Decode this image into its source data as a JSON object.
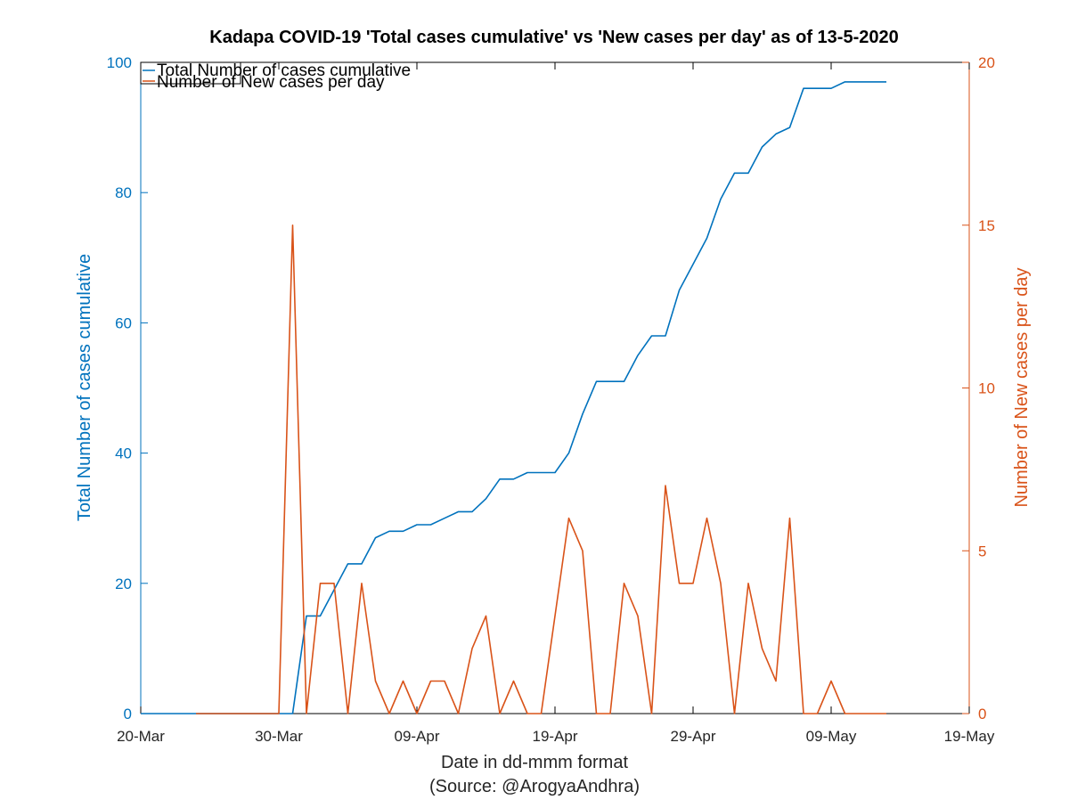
{
  "chart_data": {
    "type": "line",
    "title": "Kadapa COVID-19 'Total cases cumulative' vs 'New cases per day' as of 13-5-2020",
    "xlabel": "Date in dd-mmm format",
    "source": "(Source: @ArogyaAndhra)",
    "ylabel_left": "Total Number of cases cumulative",
    "ylabel_right": "Number of New cases per day",
    "xlim": [
      "2020-03-20",
      "2020-05-19"
    ],
    "x_ticks": [
      "20-Mar",
      "30-Mar",
      "09-Apr",
      "19-Apr",
      "29-Apr",
      "09-May",
      "19-May"
    ],
    "ylim_left": [
      0,
      100
    ],
    "y_ticks_left": [
      "0",
      "20",
      "40",
      "60",
      "80",
      "100"
    ],
    "ylim_right": [
      0,
      20
    ],
    "y_ticks_right": [
      "0",
      "5",
      "10",
      "15",
      "20"
    ],
    "grid": false,
    "legend_position": "top-left",
    "colors": {
      "cumulative": "#0072BD",
      "new": "#D95319",
      "axes": "#000000"
    },
    "series": [
      {
        "name": "Total Number of cases cumulative",
        "axis": "left",
        "x": [
          "2020-03-20",
          "2020-03-31",
          "2020-04-01",
          "2020-04-02",
          "2020-04-03",
          "2020-04-04",
          "2020-04-05",
          "2020-04-06",
          "2020-04-07",
          "2020-04-08",
          "2020-04-09",
          "2020-04-10",
          "2020-04-11",
          "2020-04-12",
          "2020-04-13",
          "2020-04-14",
          "2020-04-15",
          "2020-04-16",
          "2020-04-17",
          "2020-04-18",
          "2020-04-19",
          "2020-04-20",
          "2020-04-21",
          "2020-04-22",
          "2020-04-23",
          "2020-04-24",
          "2020-04-25",
          "2020-04-26",
          "2020-04-27",
          "2020-04-28",
          "2020-04-29",
          "2020-04-30",
          "2020-05-01",
          "2020-05-02",
          "2020-05-03",
          "2020-05-04",
          "2020-05-05",
          "2020-05-06",
          "2020-05-07",
          "2020-05-08",
          "2020-05-09",
          "2020-05-10",
          "2020-05-11",
          "2020-05-12",
          "2020-05-13"
        ],
        "values": [
          0,
          0,
          15,
          15,
          19,
          23,
          23,
          27,
          28,
          28,
          29,
          29,
          30,
          31,
          31,
          33,
          36,
          36,
          37,
          37,
          37,
          40,
          46,
          51,
          51,
          51,
          55,
          58,
          58,
          65,
          69,
          73,
          79,
          83,
          83,
          87,
          89,
          90,
          96,
          96,
          96,
          97,
          97,
          97,
          97
        ]
      },
      {
        "name": "Number of New cases per day",
        "axis": "right",
        "x": [
          "2020-03-24",
          "2020-03-30",
          "2020-03-31",
          "2020-04-01",
          "2020-04-02",
          "2020-04-03",
          "2020-04-04",
          "2020-04-05",
          "2020-04-06",
          "2020-04-07",
          "2020-04-08",
          "2020-04-09",
          "2020-04-10",
          "2020-04-11",
          "2020-04-12",
          "2020-04-13",
          "2020-04-14",
          "2020-04-15",
          "2020-04-16",
          "2020-04-17",
          "2020-04-18",
          "2020-04-19",
          "2020-04-20",
          "2020-04-21",
          "2020-04-22",
          "2020-04-23",
          "2020-04-24",
          "2020-04-25",
          "2020-04-26",
          "2020-04-27",
          "2020-04-28",
          "2020-04-29",
          "2020-04-30",
          "2020-05-01",
          "2020-05-02",
          "2020-05-03",
          "2020-05-04",
          "2020-05-05",
          "2020-05-06",
          "2020-05-07",
          "2020-05-08",
          "2020-05-09",
          "2020-05-10",
          "2020-05-11",
          "2020-05-12",
          "2020-05-13"
        ],
        "values": [
          0,
          0,
          15,
          0,
          4,
          4,
          0,
          4,
          1,
          0,
          1,
          0,
          1,
          1,
          0,
          2,
          3,
          0,
          1,
          0,
          0,
          3,
          6,
          5,
          0,
          0,
          4,
          3,
          0,
          7,
          4,
          4,
          6,
          4,
          0,
          4,
          2,
          1,
          6,
          0,
          0,
          1,
          0,
          0,
          0,
          0
        ]
      }
    ]
  }
}
